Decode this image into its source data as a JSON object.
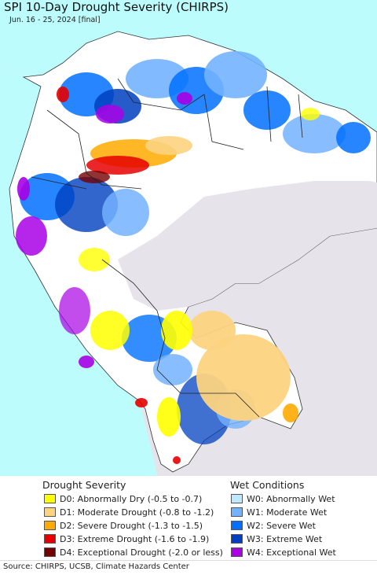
{
  "map": {
    "title": "SPI 10-Day Drought Severity (CHIRPS)",
    "subtitle": "Jun. 16 - 25, 2024 [final]"
  },
  "legend": {
    "drought_heading": "Drought Severity",
    "wet_heading": "Wet Conditions",
    "drought_items": [
      {
        "label": "D0: Abnormally Dry (-0.5 to -0.7)",
        "color": "#ffff00"
      },
      {
        "label": "D1: Moderate Drought (-0.8 to -1.2)",
        "color": "#fcd37f"
      },
      {
        "label": "D2: Severe Drought (-1.3 to -1.5)",
        "color": "#ffaa00"
      },
      {
        "label": "D3: Extreme Drought (-1.6 to -1.9)",
        "color": "#e60000"
      },
      {
        "label": "D4: Exceptional Drought (-2.0 or less)",
        "color": "#730000"
      }
    ],
    "wet_items": [
      {
        "label": "W0: Abnormally Wet",
        "color": "#bee8ff"
      },
      {
        "label": "W1: Moderate Wet",
        "color": "#73b2ff"
      },
      {
        "label": "W2: Severe Wet",
        "color": "#0070ff"
      },
      {
        "label": "W3: Extreme Wet",
        "color": "#0040c0"
      },
      {
        "label": "W4: Exceptional Wet",
        "color": "#a900e6"
      }
    ]
  },
  "footer": {
    "source": "Source: CHIRPS, UCSB, Climate Hazards Center"
  }
}
